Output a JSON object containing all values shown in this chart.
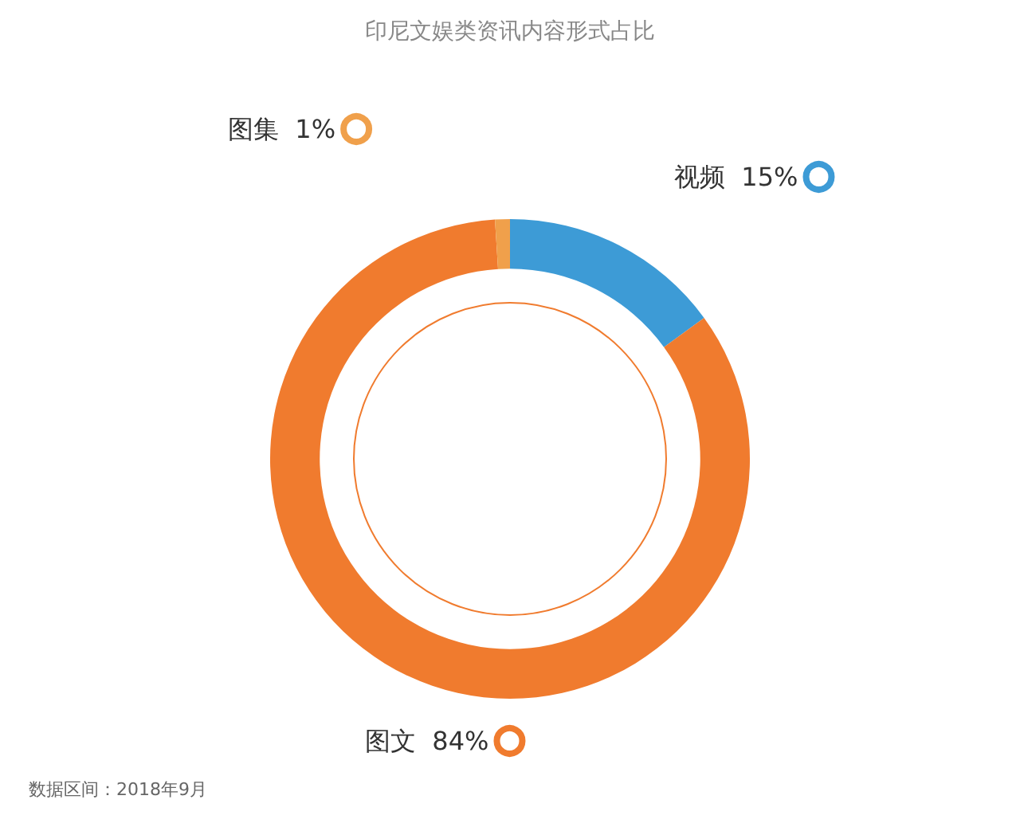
{
  "chart_data": {
    "type": "donut",
    "title": "印尼文娱类资讯内容形式占比",
    "categories": [
      "视频",
      "图文",
      "图集"
    ],
    "values": [
      15,
      84,
      1
    ],
    "colors": [
      "#3d9bd6",
      "#f07b2e",
      "#f0a04b"
    ],
    "value_labels": [
      "15%",
      "84%",
      "1%"
    ],
    "legend": "top",
    "annotations": [
      "数据区间：2018年9月"
    ]
  }
}
